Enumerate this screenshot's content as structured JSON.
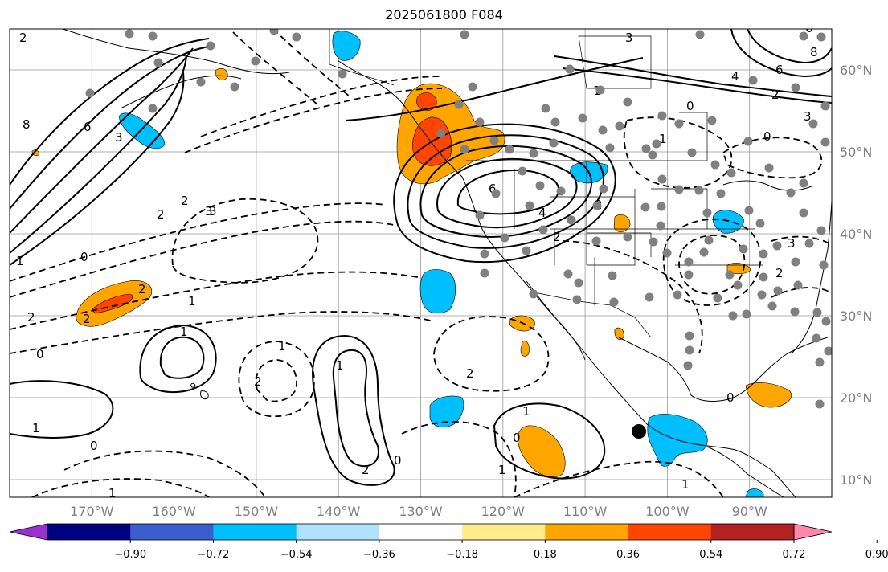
{
  "title": "2025061800 F084",
  "map": {
    "projection": "PlateCarree",
    "lon_range_deg": [
      -180,
      -80
    ],
    "lat_range_deg": [
      8,
      65
    ],
    "gridlines": true,
    "colors": {
      "land_outline": "#000000",
      "gridline": "#999999",
      "axis_label": "#7f7f7f",
      "station_dot": "#808080"
    }
  },
  "axes": {
    "lat_labels": [
      "60°N",
      "50°N",
      "40°N",
      "30°N",
      "20°N",
      "10°N"
    ],
    "lon_labels": [
      "170°W",
      "160°W",
      "150°W",
      "140°W",
      "130°W",
      "120°W",
      "110°W",
      "100°W",
      "90°W"
    ]
  },
  "colorbar": {
    "ticks": [
      "−0.90",
      "−0.72",
      "−0.54",
      "−0.36",
      "−0.18",
      "0.18",
      "0.36",
      "0.54",
      "0.72",
      "0.90"
    ],
    "colors": [
      "#9b30d0",
      "#000080",
      "#3a5fcd",
      "#00bfff",
      "#b0e2ff",
      "#ffffff",
      "#ffec8b",
      "#ffa500",
      "#ff4500",
      "#b22222",
      "#ff88aa"
    ],
    "extend": "both"
  },
  "contour_labels": {
    "solid": [
      "8",
      "6",
      "3",
      "1",
      "6",
      "4",
      "2",
      "3",
      "6",
      "4",
      "2",
      "8",
      "6",
      "1",
      "1",
      "2",
      "1",
      "2",
      "1",
      "3",
      "2",
      "2",
      "1",
      "1",
      "3"
    ],
    "dashed": [
      "2",
      "2",
      "3",
      "0",
      "0",
      "2",
      "2",
      "1",
      "0",
      "0",
      "1",
      "1",
      "2",
      "0",
      "1",
      "2",
      "0",
      "0",
      "1",
      "0",
      "2",
      "3"
    ]
  },
  "markers": {
    "highlight_point": {
      "lon": -103,
      "lat": 16,
      "color": "#000000"
    },
    "station_count_approx": 120
  },
  "shaded_regions": [
    {
      "sign": "positive",
      "area": "Pacific Northwest / British Columbia coast",
      "peak_level": "0.72"
    },
    {
      "sign": "positive",
      "area": "Central Pacific near 30°N 168°W",
      "peak_level": "0.54"
    },
    {
      "sign": "positive",
      "area": "Eastern Pacific near 14°N 113°W",
      "peak_level": "0.36"
    },
    {
      "sign": "negative",
      "area": "Gulf of Tehuantepec / Central America Pacific",
      "peak_level": "-0.36"
    },
    {
      "sign": "negative",
      "area": "Pacific near 35°N 129°W",
      "peak_level": "-0.36"
    },
    {
      "sign": "negative",
      "area": "Pacific near 18°N 126°W",
      "peak_level": "-0.36"
    },
    {
      "sign": "negative",
      "area": "Alaska Peninsula",
      "peak_level": "-0.36"
    },
    {
      "sign": "negative",
      "area": "Upper Midwest / Northern Rockies",
      "peak_level": "-0.36"
    }
  ]
}
